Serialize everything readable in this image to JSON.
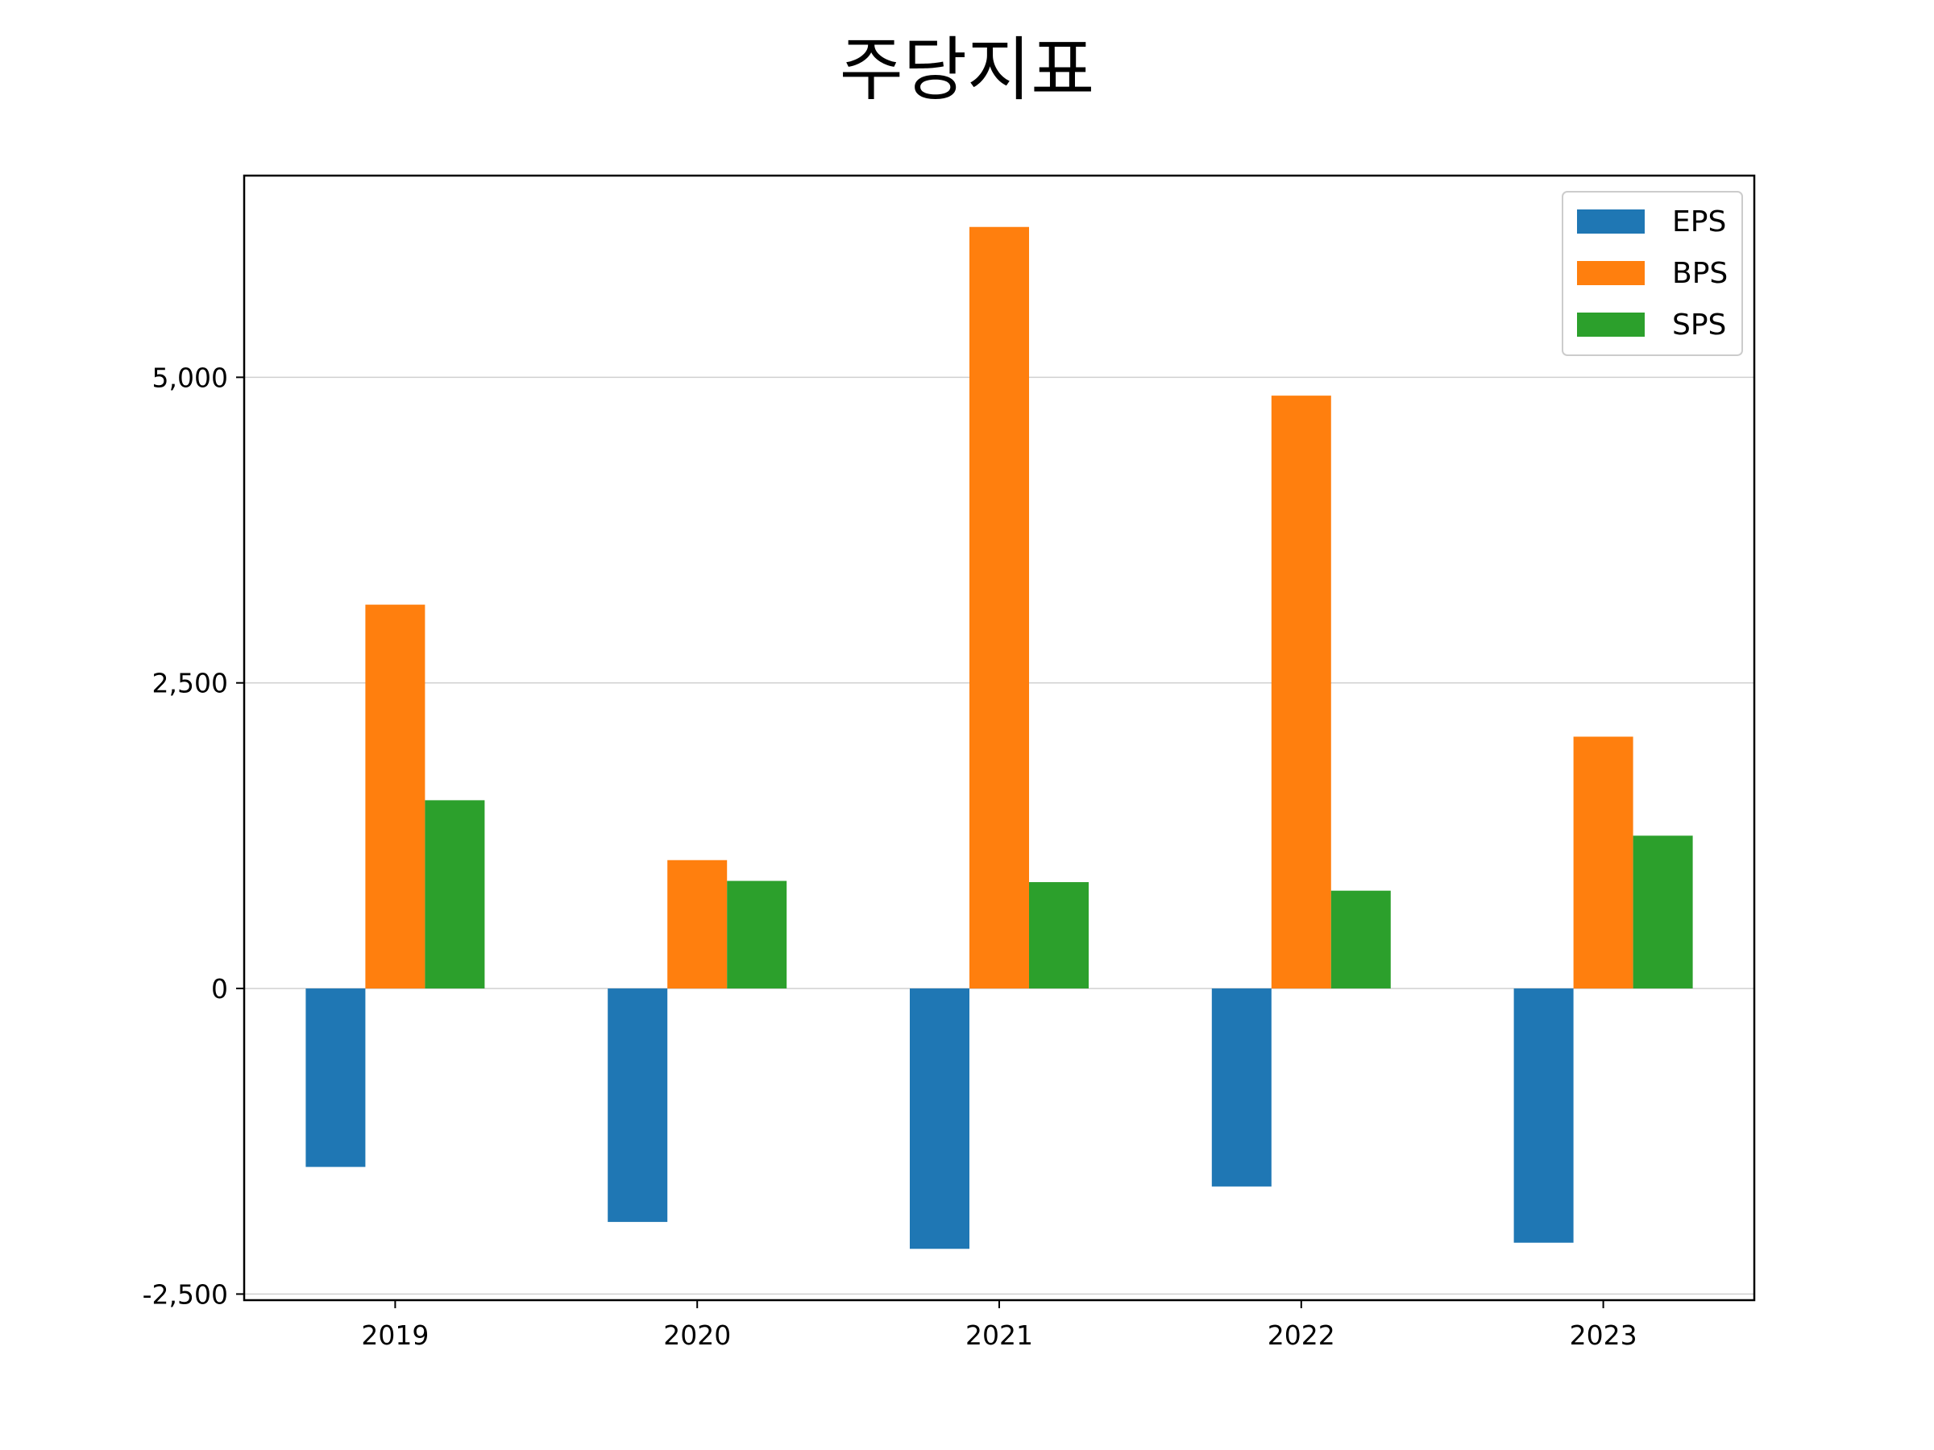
{
  "chart_data": {
    "type": "bar",
    "title": "주당지표",
    "xlabel": "",
    "ylabel": "",
    "categories": [
      "2019",
      "2020",
      "2021",
      "2022",
      "2023"
    ],
    "series": [
      {
        "name": "EPS",
        "color": "#1f77b4",
        "values": [
          -1460,
          -1910,
          -2130,
          -1620,
          -2080
        ]
      },
      {
        "name": "BPS",
        "color": "#ff7f0e",
        "values": [
          3140,
          1050,
          6230,
          4850,
          2060
        ]
      },
      {
        "name": "SPS",
        "color": "#2ca02c",
        "values": [
          1540,
          880,
          870,
          800,
          1250
        ]
      }
    ],
    "ylim": [
      -2550,
      6650
    ],
    "yticks": [
      -2500,
      0,
      2500,
      5000
    ],
    "ytick_labels": [
      "-2,500",
      "0",
      "2,500",
      "5,000"
    ],
    "grid": "horizontal",
    "legend": "top-right"
  }
}
